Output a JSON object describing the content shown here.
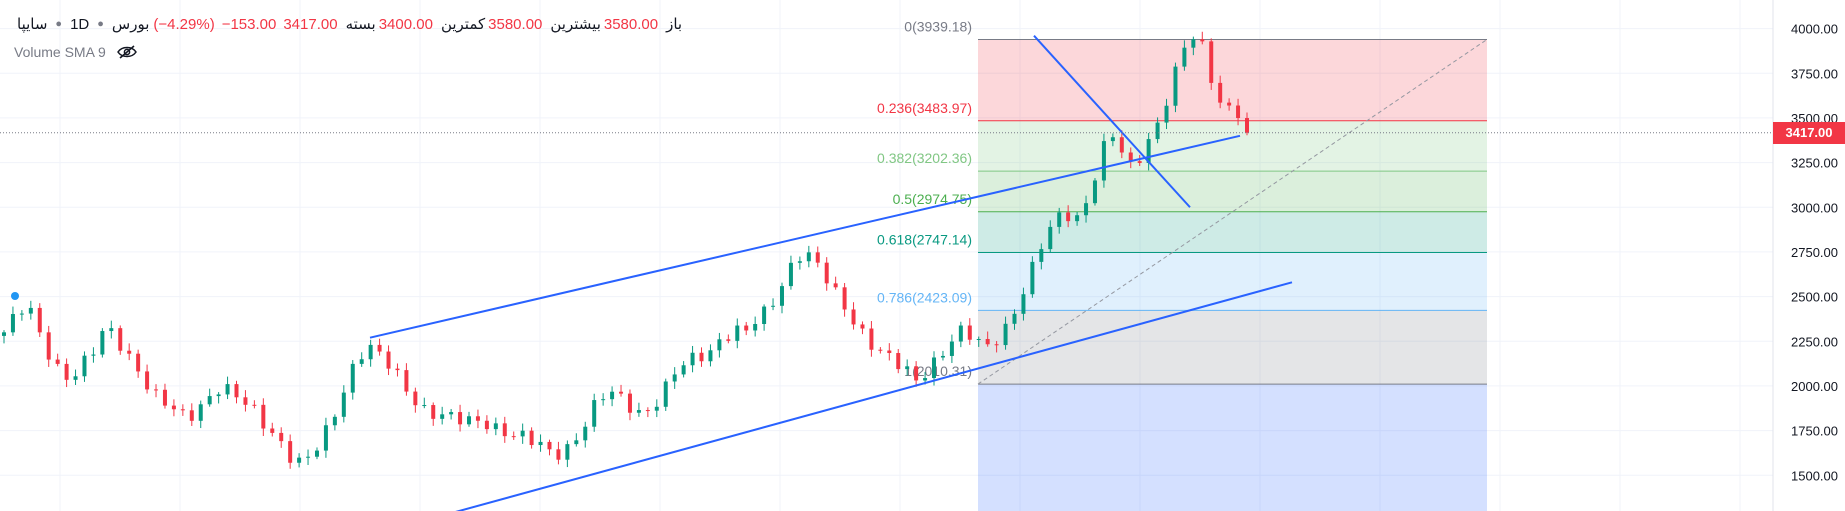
{
  "legend": {
    "symbol": "سایپا",
    "timeframe": "1D",
    "exchange": "بورس",
    "open_label": "باز",
    "open": "3580.00",
    "high_label": "بیشترین",
    "high": "3580.00",
    "low_label": "کمترین",
    "low": "3400.00",
    "close_label": "بسته",
    "close": "3417.00",
    "change": "−153.00",
    "change_pct": "(−4.29%)"
  },
  "volume_indicator": {
    "label": "Volume SMA 9"
  },
  "last_price_tag": "3417.00",
  "colors": {
    "up": "#089981",
    "down": "#f23645",
    "trendline": "#2962ff",
    "price_line": "#787b86"
  },
  "chart_data": {
    "type": "candlestick",
    "y_axis": {
      "ticks": [
        "1500.00",
        "1750.00",
        "2000.00",
        "2250.00",
        "2500.00",
        "2750.00",
        "3000.00",
        "3250.00",
        "3500.00",
        "3750.00",
        "4000.00"
      ],
      "range": [
        1300,
        4160
      ]
    },
    "last_price": 3417,
    "path": [
      2300,
      2380,
      2450,
      2310,
      2180,
      2080,
      2050,
      2120,
      2200,
      2330,
      2260,
      2170,
      2080,
      1950,
      1900,
      1850,
      1820,
      1880,
      1950,
      2000,
      1950,
      1900,
      1850,
      1780,
      1720,
      1620,
      1560,
      1600,
      1700,
      1850,
      2020,
      2180,
      2220,
      2160,
      2090,
      2000,
      1930,
      1870,
      1850,
      1820,
      1800,
      1790,
      1810,
      1780,
      1750,
      1720,
      1690,
      1660,
      1620,
      1640,
      1700,
      1800,
      1900,
      1960,
      1930,
      1890,
      1850,
      1900,
      1980,
      2080,
      2130,
      2170,
      2210,
      2280,
      2310,
      2290,
      2360,
      2420,
      2550,
      2680,
      2760,
      2700,
      2600,
      2500,
      2420,
      2330,
      2250,
      2180,
      2130,
      2080,
      2030,
      2100,
      2180,
      2250,
      2300,
      2260,
      2200,
      2270,
      2350,
      2480,
      2620,
      2780,
      2900,
      2980,
      2940,
      3050,
      3250,
      3420,
      3300,
      3200,
      3350,
      3450,
      3620,
      3800,
      3960,
      3900,
      3700,
      3550,
      3580,
      3417
    ],
    "candle_count": 140,
    "fibonacci": {
      "levels": [
        {
          "ratio": "0",
          "price": 3939.18,
          "label": "0(3939.18)",
          "color": "#787b86",
          "fill": "rgba(242,54,69,0.2)"
        },
        {
          "ratio": "0.236",
          "price": 3483.97,
          "label": "0.236(3483.97)",
          "color": "#f23645",
          "fill": "rgba(129,199,132,0.22)"
        },
        {
          "ratio": "0.382",
          "price": 3202.36,
          "label": "0.382(3202.36)",
          "color": "#81c784",
          "fill": "rgba(76,175,80,0.2)"
        },
        {
          "ratio": "0.5",
          "price": 2974.75,
          "label": "0.5(2974.75)",
          "color": "#4caf50",
          "fill": "rgba(8,153,129,0.2)"
        },
        {
          "ratio": "0.618",
          "price": 2747.14,
          "label": "0.618(2747.14)",
          "color": "#089981",
          "fill": "rgba(100,181,246,0.2)"
        },
        {
          "ratio": "0.786",
          "price": 2423.09,
          "label": "0.786(2423.09)",
          "color": "#64b5f6",
          "fill": "rgba(120,123,134,0.2)"
        },
        {
          "ratio": "1",
          "price": 2010.31,
          "label": "1(2010.31)",
          "color": "#787b86",
          "fill": "rgba(41,98,255,0.2)"
        }
      ]
    },
    "trendlines": [
      {
        "name": "upper-channel",
        "from": [
          370,
          2270
        ],
        "to": [
          1240,
          3400
        ]
      },
      {
        "name": "lower-channel",
        "from": [
          420,
          1240
        ],
        "to": [
          1292,
          2580
        ]
      },
      {
        "name": "downtrend",
        "from": [
          1034,
          3960
        ],
        "to": [
          1190,
          3000
        ]
      }
    ]
  }
}
